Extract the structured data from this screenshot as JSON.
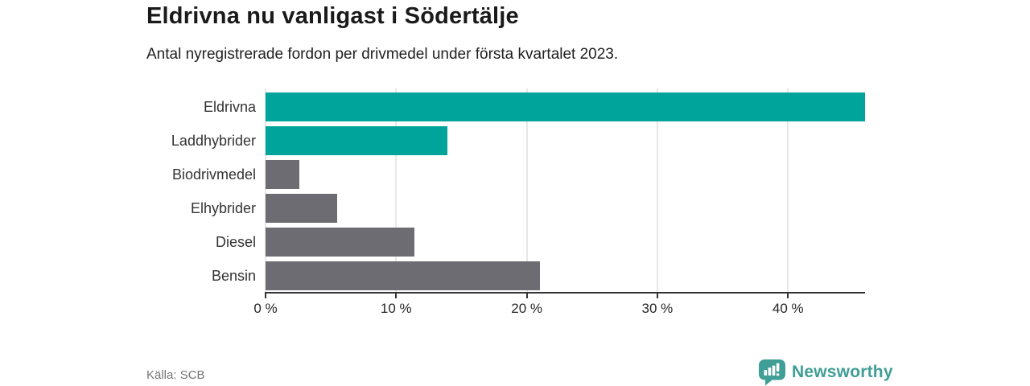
{
  "header": {
    "title": "Eldrivna nu vanligast i Södertälje",
    "subtitle": "Antal nyregistrerade fordon per drivmedel under första kvartalet 2023."
  },
  "footer": {
    "source": "Källa: SCB",
    "brand": "Newsworthy"
  },
  "colors": {
    "accent_teal": "#00a49a",
    "bar_gray": "#6d6c73",
    "grid": "#e7e7e7",
    "axis": "#333333",
    "logo_teal": "#3f9e96"
  },
  "chart_data": {
    "type": "bar",
    "orientation": "horizontal",
    "title": "Eldrivna nu vanligast i Södertälje",
    "subtitle": "Antal nyregistrerade fordon per drivmedel under första kvartalet 2023.",
    "categories": [
      "Eldrivna",
      "Laddhybrider",
      "Biodrivmedel",
      "Elhybrider",
      "Diesel",
      "Bensin"
    ],
    "values": [
      45.9,
      13.9,
      2.6,
      5.5,
      11.4,
      21.0
    ],
    "bar_colors": [
      "#00a49a",
      "#00a49a",
      "#6d6c73",
      "#6d6c73",
      "#6d6c73",
      "#6d6c73"
    ],
    "xlabel": "",
    "ylabel": "",
    "xlim": [
      0,
      45.9
    ],
    "x_ticks": [
      0,
      10,
      20,
      30,
      40
    ],
    "x_tick_labels": [
      "0 %",
      "10 %",
      "20 %",
      "30 %",
      "40 %"
    ],
    "grid": "vertical",
    "legend": "none"
  }
}
